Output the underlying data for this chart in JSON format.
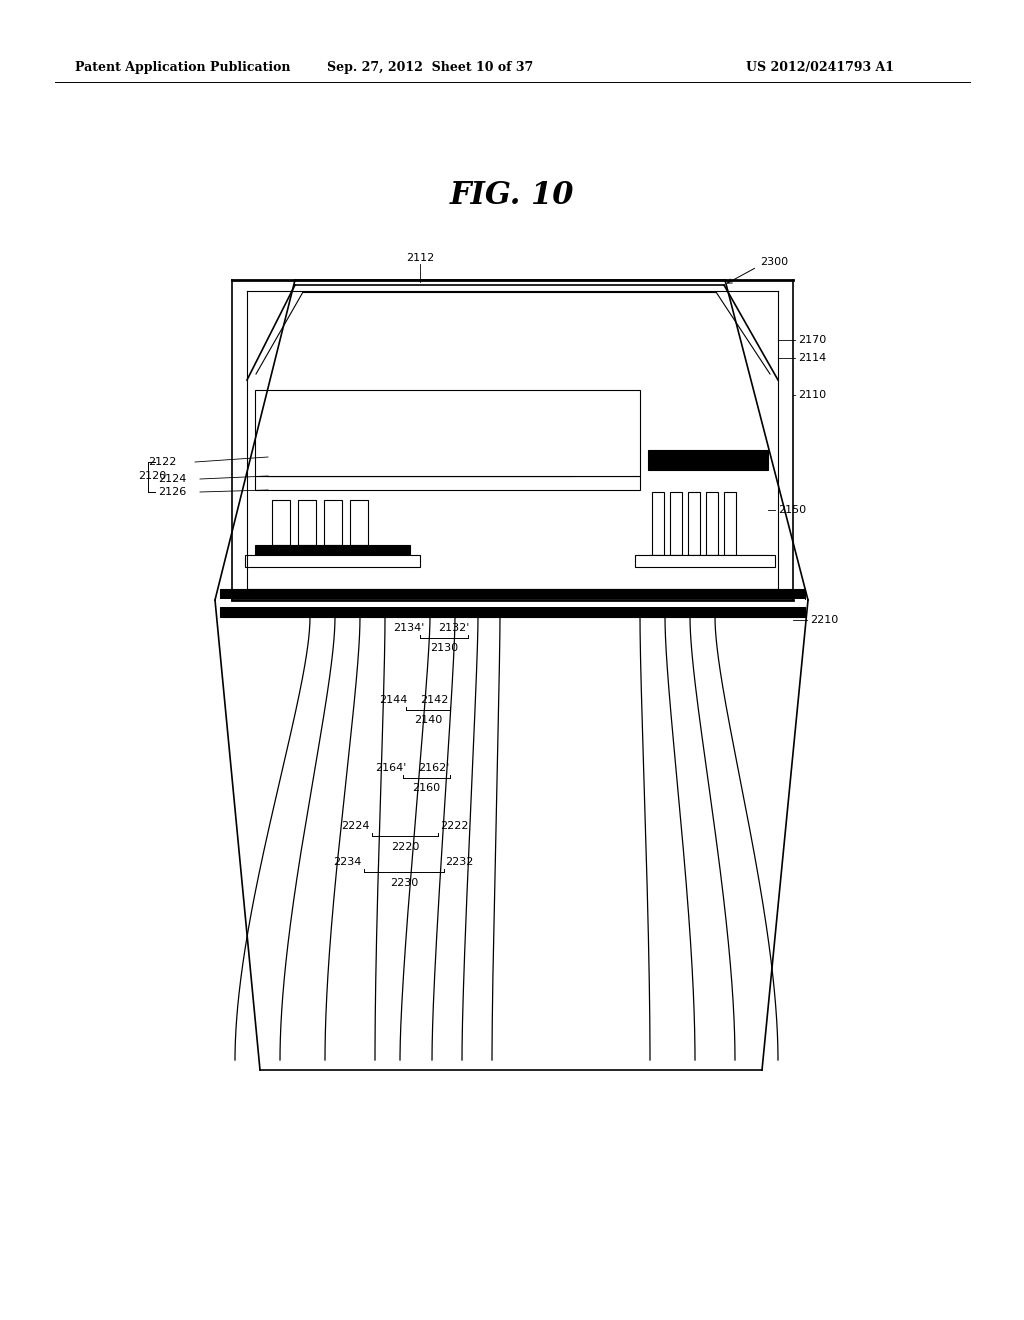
{
  "title": "FIG. 10",
  "header_left": "Patent Application Publication",
  "header_mid": "Sep. 27, 2012  Sheet 10 of 37",
  "header_right": "US 2012/0241793 A1",
  "bg_color": "#ffffff",
  "line_color": "#000000"
}
